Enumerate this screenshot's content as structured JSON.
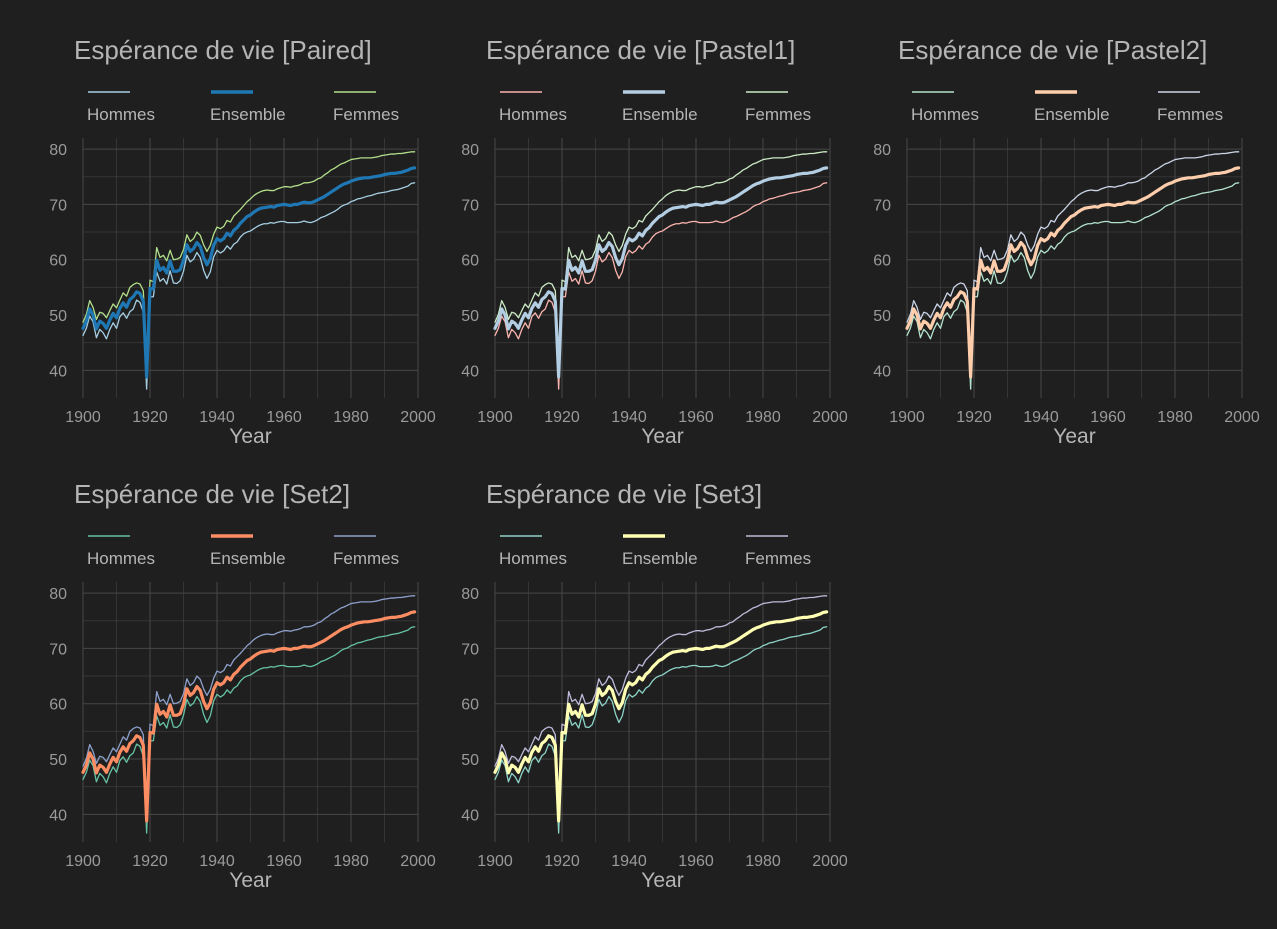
{
  "chart_data": [
    {
      "type": "line",
      "title": "Espérance de vie [Paired]",
      "xlabel": "Year",
      "ylabel": "",
      "xlim": [
        1900,
        2000
      ],
      "ylim": [
        35,
        82
      ],
      "xticks": [
        1900,
        1920,
        1940,
        1960,
        1980,
        2000
      ],
      "yticks": [
        40,
        50,
        60,
        70,
        80
      ],
      "grid": true,
      "legend": "top",
      "colors": {
        "Hommes": "#a6cee3",
        "Ensemble": "#1f78b4",
        "Femmes": "#b2df8a"
      }
    },
    {
      "type": "line",
      "title": "Espérance de vie [Pastel1]",
      "xlabel": "Year",
      "ylabel": "",
      "xlim": [
        1900,
        2000
      ],
      "ylim": [
        35,
        82
      ],
      "xticks": [
        1900,
        1920,
        1940,
        1960,
        1980,
        2000
      ],
      "yticks": [
        40,
        50,
        60,
        70,
        80
      ],
      "grid": true,
      "legend": "top",
      "colors": {
        "Hommes": "#fbb4ae",
        "Ensemble": "#b3cde3",
        "Femmes": "#ccebc5"
      }
    },
    {
      "type": "line",
      "title": "Espérance de vie [Pastel2]",
      "xlabel": "Year",
      "ylabel": "",
      "xlim": [
        1900,
        2000
      ],
      "ylim": [
        35,
        82
      ],
      "xticks": [
        1900,
        1920,
        1940,
        1960,
        1980,
        2000
      ],
      "yticks": [
        40,
        50,
        60,
        70,
        80
      ],
      "grid": true,
      "legend": "top",
      "colors": {
        "Hommes": "#b3e2cd",
        "Ensemble": "#fdcdac",
        "Femmes": "#cbd5e8"
      }
    },
    {
      "type": "line",
      "title": "Espérance de vie [Set2]",
      "xlabel": "Year",
      "ylabel": "",
      "xlim": [
        1900,
        2000
      ],
      "ylim": [
        35,
        82
      ],
      "xticks": [
        1900,
        1920,
        1940,
        1960,
        1980,
        2000
      ],
      "yticks": [
        40,
        50,
        60,
        70,
        80
      ],
      "grid": true,
      "legend": "top",
      "colors": {
        "Hommes": "#66c2a5",
        "Ensemble": "#fc8d62",
        "Femmes": "#8da0cb"
      }
    },
    {
      "type": "line",
      "title": "Espérance de vie [Set3]",
      "xlabel": "Year",
      "ylabel": "",
      "xlim": [
        1900,
        2000
      ],
      "ylim": [
        35,
        82
      ],
      "xticks": [
        1900,
        1920,
        1940,
        1960,
        1980,
        2000
      ],
      "yticks": [
        40,
        50,
        60,
        70,
        80
      ],
      "grid": true,
      "legend": "top",
      "colors": {
        "Hommes": "#8dd3c7",
        "Ensemble": "#ffffb3",
        "Femmes": "#bebada"
      }
    }
  ],
  "x": [
    1900,
    1901,
    1902,
    1903,
    1904,
    1905,
    1906,
    1907,
    1908,
    1909,
    1910,
    1911,
    1912,
    1913,
    1914,
    1915,
    1916,
    1917,
    1918,
    1919,
    1920,
    1921,
    1922,
    1923,
    1924,
    1925,
    1926,
    1927,
    1928,
    1929,
    1930,
    1931,
    1932,
    1933,
    1934,
    1935,
    1936,
    1937,
    1938,
    1939,
    1940,
    1941,
    1942,
    1943,
    1944,
    1945,
    1946,
    1947,
    1948,
    1949,
    1950,
    1951,
    1952,
    1953,
    1954,
    1955,
    1956,
    1957,
    1958,
    1959,
    1960,
    1961,
    1962,
    1963,
    1964,
    1965,
    1966,
    1967,
    1968,
    1969,
    1970,
    1971,
    1972,
    1973,
    1974,
    1975,
    1976,
    1977,
    1978,
    1979,
    1980,
    1981,
    1982,
    1983,
    1984,
    1985,
    1986,
    1987,
    1988,
    1989,
    1990,
    1991,
    1992,
    1993,
    1994,
    1995,
    1996,
    1997,
    1998,
    1999
  ],
  "series": [
    {
      "name": "Hommes",
      "values": [
        46.3,
        47.6,
        49.8,
        48.8,
        45.9,
        47.4,
        46.8,
        45.7,
        47.4,
        48.6,
        47.6,
        49.7,
        50.4,
        49.4,
        50.6,
        51.1,
        52.7,
        52.3,
        50.5,
        36.6,
        53.3,
        53.3,
        57.8,
        56.1,
        56.6,
        55.6,
        58.0,
        55.8,
        55.7,
        56.2,
        57.9,
        60.8,
        59.6,
        60.1,
        61.3,
        60.4,
        58.1,
        56.6,
        57.8,
        60.5,
        61.7,
        61.2,
        61.6,
        62.5,
        61.9,
        62.8,
        63.2,
        64.1,
        64.7,
        65.0,
        65.2,
        65.6,
        66.0,
        66.3,
        66.5,
        66.5,
        66.7,
        66.6,
        66.8,
        66.9,
        66.9,
        66.7,
        66.7,
        66.7,
        66.7,
        66.8,
        67.0,
        66.8,
        66.7,
        66.9,
        67.2,
        67.6,
        67.8,
        68.1,
        68.4,
        68.7,
        69.1,
        69.6,
        69.9,
        70.1,
        70.5,
        70.7,
        71.0,
        71.1,
        71.3,
        71.5,
        71.6,
        71.8,
        72.0,
        72.1,
        72.2,
        72.3,
        72.5,
        72.6,
        72.7,
        72.9,
        73.1,
        73.3,
        73.8,
        73.9
      ]
    },
    {
      "name": "Ensemble",
      "values": [
        47.6,
        48.9,
        51.1,
        50.0,
        47.5,
        48.9,
        48.5,
        47.6,
        49.1,
        50.3,
        49.5,
        51.2,
        52.2,
        51.4,
        52.8,
        53.3,
        54.2,
        53.9,
        52.5,
        38.8,
        54.8,
        54.7,
        59.9,
        58.1,
        58.6,
        57.6,
        59.8,
        57.9,
        57.9,
        58.2,
        59.9,
        62.7,
        61.5,
        62.0,
        63.1,
        62.4,
        60.4,
        59.1,
        60.2,
        62.6,
        63.8,
        63.4,
        63.8,
        64.8,
        64.3,
        65.3,
        65.8,
        66.6,
        67.2,
        67.8,
        68.1,
        68.6,
        69.0,
        69.3,
        69.4,
        69.5,
        69.6,
        69.5,
        69.8,
        69.9,
        70.0,
        69.9,
        69.8,
        70.0,
        70.0,
        70.2,
        70.4,
        70.3,
        70.3,
        70.5,
        70.8,
        71.1,
        71.4,
        71.8,
        72.2,
        72.6,
        73.0,
        73.4,
        73.7,
        73.9,
        74.2,
        74.4,
        74.6,
        74.7,
        74.8,
        74.8,
        74.9,
        75.0,
        75.1,
        75.2,
        75.4,
        75.5,
        75.6,
        75.6,
        75.7,
        75.8,
        76.0,
        76.2,
        76.5,
        76.6
      ]
    },
    {
      "name": "Femmes",
      "values": [
        48.7,
        50.1,
        52.6,
        51.4,
        49.2,
        50.5,
        50.3,
        49.5,
        50.8,
        52.0,
        51.3,
        52.7,
        54.0,
        53.4,
        55.0,
        55.5,
        55.8,
        55.6,
        54.4,
        41.0,
        56.3,
        56.0,
        62.2,
        60.4,
        60.8,
        59.8,
        61.7,
        60.0,
        60.1,
        60.4,
        61.8,
        64.5,
        63.3,
        63.8,
        65.0,
        64.4,
        62.7,
        61.5,
        62.6,
        64.6,
        65.9,
        65.6,
        66.0,
        67.1,
        66.8,
        67.9,
        68.5,
        69.1,
        69.8,
        70.5,
        71.0,
        71.6,
        72.0,
        72.3,
        72.5,
        72.6,
        72.5,
        72.5,
        72.8,
        73.0,
        73.2,
        73.2,
        73.1,
        73.3,
        73.4,
        73.6,
        73.9,
        73.9,
        74.0,
        74.2,
        74.6,
        74.8,
        75.3,
        75.7,
        76.2,
        76.5,
        76.9,
        77.3,
        77.5,
        77.8,
        78.1,
        78.2,
        78.3,
        78.4,
        78.4,
        78.4,
        78.4,
        78.5,
        78.6,
        78.8,
        78.9,
        79.0,
        79.1,
        79.1,
        79.2,
        79.2,
        79.3,
        79.4,
        79.5,
        79.5
      ]
    }
  ]
}
